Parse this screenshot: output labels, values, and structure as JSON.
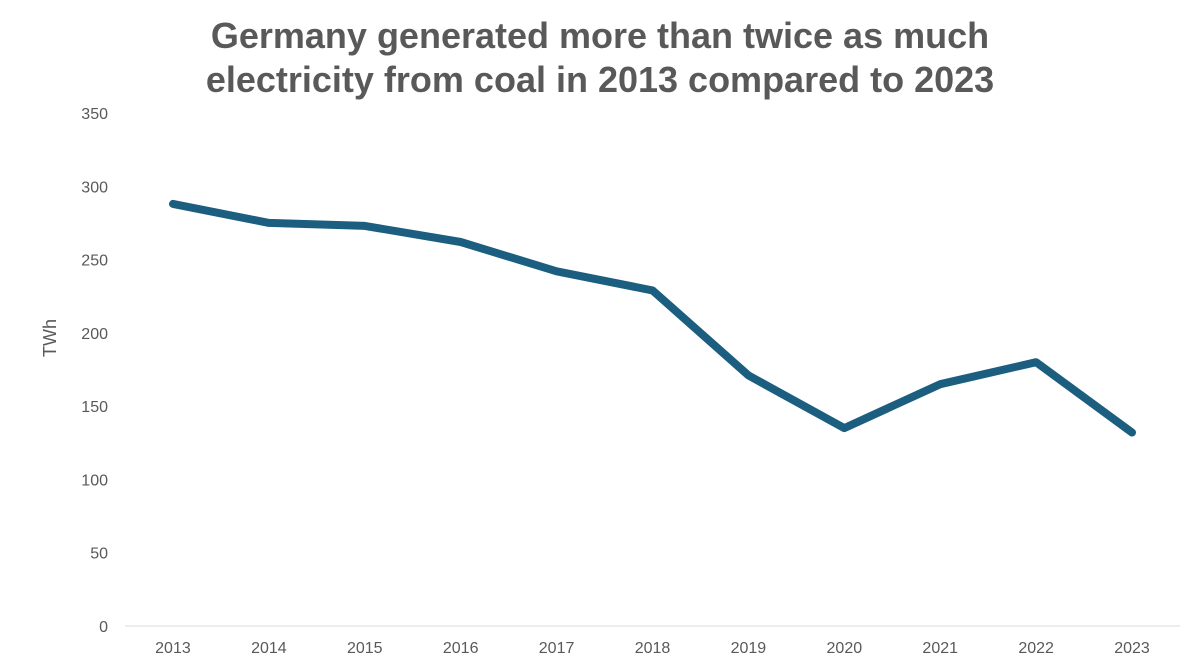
{
  "chart_data": {
    "type": "line",
    "title_lines": [
      "Germany generated more than twice as much",
      "electricity from coal in 2013 compared to 2023"
    ],
    "xlabel": "",
    "ylabel": "TWh",
    "ylim": [
      0,
      350
    ],
    "y_ticks": [
      "0",
      "50",
      "100",
      "150",
      "200",
      "250",
      "300",
      "350"
    ],
    "grid": false,
    "categories": [
      "2013",
      "2014",
      "2015",
      "2016",
      "2017",
      "2018",
      "2019",
      "2020",
      "2021",
      "2022",
      "2023"
    ],
    "series": [
      {
        "values": [
          288,
          275,
          273,
          262,
          242,
          229,
          171,
          135,
          165,
          180,
          132
        ],
        "color": "#1b5e80"
      }
    ]
  }
}
